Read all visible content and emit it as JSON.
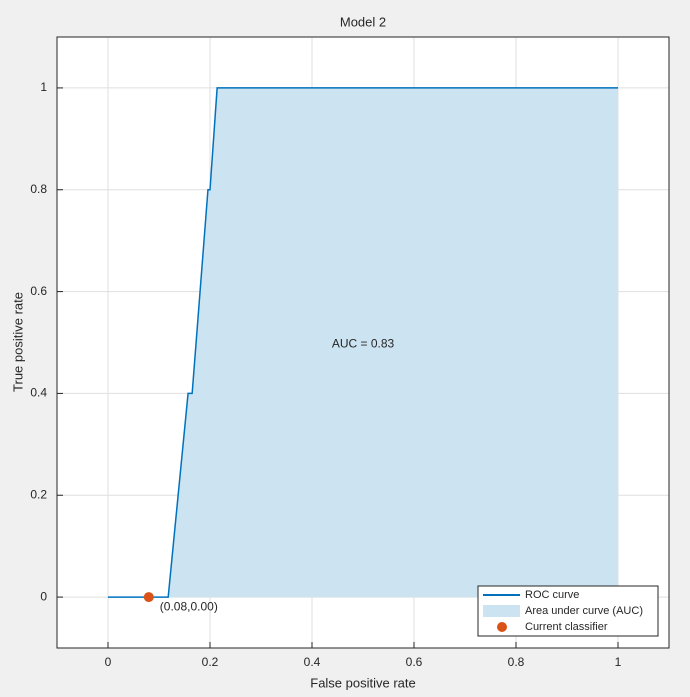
{
  "chart_data": {
    "type": "line",
    "title": "Model 2",
    "xlabel": "False positive rate",
    "ylabel": "True positive rate",
    "xlim": [
      -0.1,
      1.1
    ],
    "ylim": [
      -0.1,
      1.1
    ],
    "xticks": [
      0,
      0.2,
      0.4,
      0.6,
      0.8,
      1
    ],
    "yticks": [
      0,
      0.2,
      0.4,
      0.6,
      0.8,
      1
    ],
    "grid": true,
    "legend": "southeast",
    "annotation": "AUC = 0.83",
    "series": [
      {
        "name": "ROC curve",
        "type": "line",
        "color": "#0072bd",
        "x": [
          0,
          0.118,
          0.157,
          0.165,
          0.196,
          0.2,
          0.214,
          1
        ],
        "values": [
          0,
          0,
          0.4,
          0.4,
          0.8,
          0.8,
          1,
          1
        ]
      },
      {
        "name": "Area under curve (AUC)",
        "type": "area",
        "color": "#cce3f2",
        "x": [
          0,
          0.118,
          0.157,
          0.165,
          0.196,
          0.2,
          0.214,
          1
        ],
        "values": [
          0,
          0,
          0.4,
          0.4,
          0.8,
          0.8,
          1,
          1
        ]
      },
      {
        "name": "Current classifier",
        "type": "scatter",
        "color": "#d95319",
        "x": [
          0.08
        ],
        "values": [
          0
        ],
        "value_labels": [
          "(0.08,0.00)"
        ]
      }
    ]
  }
}
